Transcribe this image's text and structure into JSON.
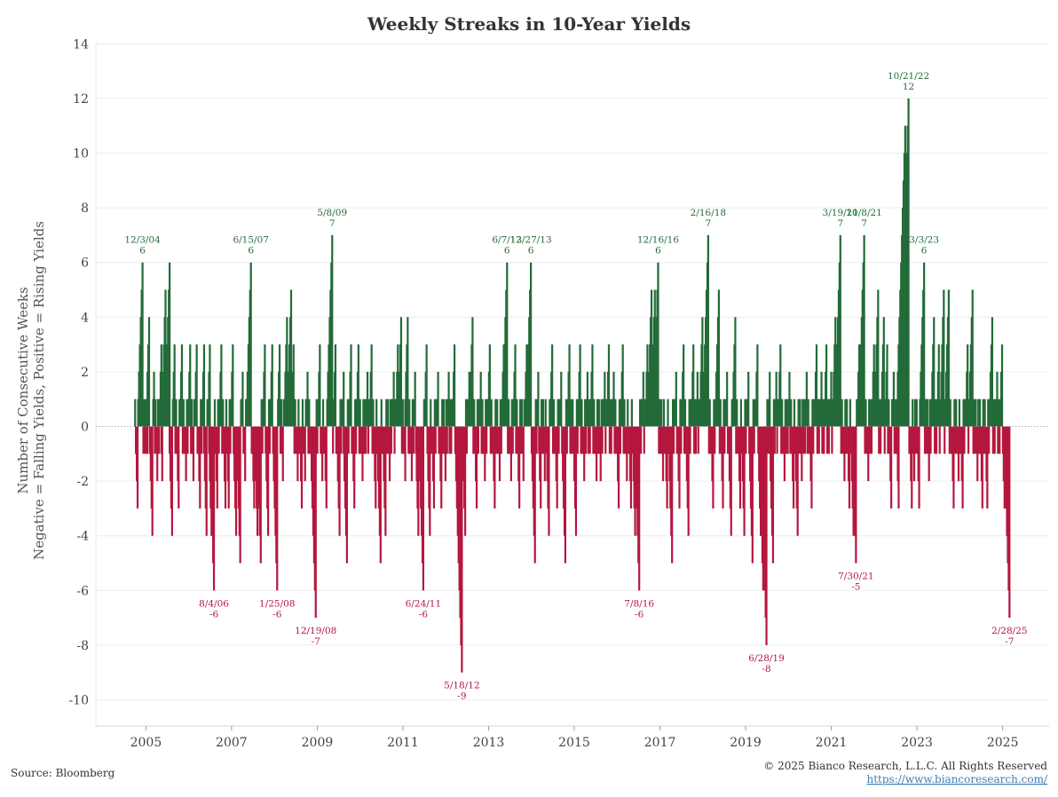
{
  "chart_data": {
    "type": "bar",
    "title": "Weekly Streaks in 10-Year Yields",
    "ylabel_line1": "Number of Consecutive Weeks",
    "ylabel_line2": "Negative = Falling Yields, Positive = Rising Yields",
    "xlabel": "",
    "ylim": [
      -11,
      14
    ],
    "y_ticks": [
      14,
      12,
      10,
      8,
      6,
      4,
      2,
      0,
      -2,
      -4,
      -6,
      -8,
      -10
    ],
    "x_ticks": [
      "2005",
      "2007",
      "2009",
      "2011",
      "2013",
      "2015",
      "2017",
      "2019",
      "2021",
      "2023",
      "2025"
    ],
    "xlim": [
      "2003-11-01",
      "2026-02-01"
    ],
    "grid": true,
    "colors": {
      "rising": "#236b38",
      "falling": "#b5173e"
    },
    "series": [
      {
        "values": [
          [
            "2004-10-01",
            1
          ],
          [
            "2004-10-08",
            -1
          ],
          [
            "2004-10-15",
            -2
          ],
          [
            "2004-10-22",
            -3
          ],
          [
            "2004-10-29",
            1
          ],
          [
            "2004-11-05",
            2
          ],
          [
            "2004-11-12",
            3
          ],
          [
            "2004-11-19",
            4
          ],
          [
            "2004-11-26",
            5
          ],
          [
            "2004-12-03",
            6
          ],
          [
            "2005-01-14",
            -1
          ],
          [
            "2005-01-28",
            4
          ],
          [
            "2005-02-25",
            -4
          ],
          [
            "2005-03-11",
            2
          ],
          [
            "2005-04-08",
            -2
          ],
          [
            "2005-05-13",
            3
          ],
          [
            "2005-05-20",
            -2
          ],
          [
            "2005-06-17",
            5
          ],
          [
            "2005-07-22",
            6
          ],
          [
            "2005-08-12",
            -4
          ],
          [
            "2005-09-02",
            3
          ],
          [
            "2005-10-07",
            -3
          ],
          [
            "2005-11-04",
            3
          ],
          [
            "2005-12-09",
            -2
          ],
          [
            "2006-01-13",
            3
          ],
          [
            "2006-02-10",
            -2
          ],
          [
            "2006-03-10",
            3
          ],
          [
            "2006-04-07",
            -3
          ],
          [
            "2006-05-12",
            3
          ],
          [
            "2006-06-02",
            -4
          ],
          [
            "2006-06-30",
            3
          ],
          [
            "2006-07-14",
            -4
          ],
          [
            "2006-08-04",
            -6
          ],
          [
            "2006-09-01",
            -3
          ],
          [
            "2006-10-06",
            3
          ],
          [
            "2006-11-10",
            -3
          ],
          [
            "2006-12-08",
            -3
          ],
          [
            "2007-01-12",
            3
          ],
          [
            "2007-02-09",
            -4
          ],
          [
            "2007-03-16",
            -5
          ],
          [
            "2007-04-06",
            2
          ],
          [
            "2007-04-27",
            -2
          ],
          [
            "2007-05-18",
            2
          ],
          [
            "2007-06-15",
            6
          ],
          [
            "2007-07-13",
            -3
          ],
          [
            "2007-08-10",
            -4
          ],
          [
            "2007-09-07",
            -5
          ],
          [
            "2007-10-12",
            3
          ],
          [
            "2007-11-09",
            -4
          ],
          [
            "2007-12-14",
            3
          ],
          [
            "2008-01-25",
            -6
          ],
          [
            "2008-02-15",
            3
          ],
          [
            "2008-03-14",
            -2
          ],
          [
            "2008-04-18",
            4
          ],
          [
            "2008-05-23",
            5
          ],
          [
            "2008-06-13",
            3
          ],
          [
            "2008-07-18",
            -2
          ],
          [
            "2008-08-22",
            -3
          ],
          [
            "2008-09-19",
            -2
          ],
          [
            "2008-10-10",
            2
          ],
          [
            "2008-11-21",
            -3
          ],
          [
            "2008-12-19",
            -7
          ],
          [
            "2009-01-23",
            3
          ],
          [
            "2009-02-13",
            -2
          ],
          [
            "2009-03-20",
            -3
          ],
          [
            "2009-04-10",
            3
          ],
          [
            "2009-05-08",
            7
          ],
          [
            "2009-06-05",
            3
          ],
          [
            "2009-07-10",
            -4
          ],
          [
            "2009-08-14",
            2
          ],
          [
            "2009-09-11",
            -5
          ],
          [
            "2009-10-16",
            3
          ],
          [
            "2009-11-13",
            -3
          ],
          [
            "2009-12-18",
            3
          ],
          [
            "2010-01-22",
            -2
          ],
          [
            "2010-03-05",
            2
          ],
          [
            "2010-04-09",
            3
          ],
          [
            "2010-05-14",
            -3
          ],
          [
            "2010-06-25",
            -5
          ],
          [
            "2010-08-06",
            -4
          ],
          [
            "2010-09-10",
            -2
          ],
          [
            "2010-10-15",
            2
          ],
          [
            "2010-11-19",
            3
          ],
          [
            "2010-12-17",
            4
          ],
          [
            "2011-01-21",
            -2
          ],
          [
            "2011-02-11",
            4
          ],
          [
            "2011-03-18",
            -2
          ],
          [
            "2011-04-15",
            2
          ],
          [
            "2011-05-13",
            -4
          ],
          [
            "2011-06-24",
            -6
          ],
          [
            "2011-07-22",
            3
          ],
          [
            "2011-08-19",
            -4
          ],
          [
            "2011-09-23",
            -3
          ],
          [
            "2011-10-28",
            2
          ],
          [
            "2011-11-25",
            -3
          ],
          [
            "2011-12-30",
            -2
          ],
          [
            "2012-01-27",
            2
          ],
          [
            "2012-03-16",
            3
          ],
          [
            "2012-04-13",
            -3
          ],
          [
            "2012-05-18",
            -9
          ],
          [
            "2012-06-15",
            -4
          ],
          [
            "2012-07-20",
            2
          ],
          [
            "2012-08-17",
            4
          ],
          [
            "2012-09-21",
            -3
          ],
          [
            "2012-10-26",
            2
          ],
          [
            "2012-11-30",
            -2
          ],
          [
            "2013-01-11",
            3
          ],
          [
            "2013-02-22",
            -3
          ],
          [
            "2013-04-05",
            -2
          ],
          [
            "2013-05-10",
            3
          ],
          [
            "2013-06-07",
            6
          ],
          [
            "2013-07-12",
            -2
          ],
          [
            "2013-08-16",
            3
          ],
          [
            "2013-09-20",
            -3
          ],
          [
            "2013-10-25",
            -2
          ],
          [
            "2013-11-22",
            3
          ],
          [
            "2013-12-27",
            6
          ],
          [
            "2014-01-31",
            -5
          ],
          [
            "2014-02-28",
            2
          ],
          [
            "2014-03-21",
            -3
          ],
          [
            "2014-04-25",
            -2
          ],
          [
            "2014-05-30",
            -4
          ],
          [
            "2014-06-27",
            3
          ],
          [
            "2014-08-08",
            -3
          ],
          [
            "2014-09-12",
            2
          ],
          [
            "2014-10-17",
            -5
          ],
          [
            "2014-11-21",
            3
          ],
          [
            "2015-01-16",
            -4
          ],
          [
            "2015-02-20",
            3
          ],
          [
            "2015-03-27",
            -2
          ],
          [
            "2015-04-24",
            2
          ],
          [
            "2015-06-05",
            3
          ],
          [
            "2015-07-10",
            -2
          ],
          [
            "2015-08-14",
            -2
          ],
          [
            "2015-09-18",
            2
          ],
          [
            "2015-10-23",
            3
          ],
          [
            "2015-12-04",
            2
          ],
          [
            "2016-01-15",
            -3
          ],
          [
            "2016-02-19",
            3
          ],
          [
            "2016-03-25",
            -2
          ],
          [
            "2016-04-29",
            -3
          ],
          [
            "2016-06-03",
            -4
          ],
          [
            "2016-07-08",
            -6
          ],
          [
            "2016-08-12",
            2
          ],
          [
            "2016-09-16",
            3
          ],
          [
            "2016-10-21",
            5
          ],
          [
            "2016-11-18",
            5
          ],
          [
            "2016-12-16",
            6
          ],
          [
            "2017-01-27",
            -2
          ],
          [
            "2017-03-03",
            -3
          ],
          [
            "2017-04-14",
            -5
          ],
          [
            "2017-05-19",
            2
          ],
          [
            "2017-06-16",
            -3
          ],
          [
            "2017-07-21",
            3
          ],
          [
            "2017-09-01",
            -4
          ],
          [
            "2017-10-13",
            3
          ],
          [
            "2017-11-17",
            2
          ],
          [
            "2017-12-29",
            4
          ],
          [
            "2018-02-16",
            7
          ],
          [
            "2018-03-30",
            -3
          ],
          [
            "2018-05-18",
            5
          ],
          [
            "2018-06-22",
            -3
          ],
          [
            "2018-07-27",
            2
          ],
          [
            "2018-08-31",
            -4
          ],
          [
            "2018-10-05",
            4
          ],
          [
            "2018-11-16",
            -3
          ],
          [
            "2018-12-21",
            -4
          ],
          [
            "2019-01-25",
            2
          ],
          [
            "2019-03-01",
            -5
          ],
          [
            "2019-04-12",
            3
          ],
          [
            "2019-05-10",
            -4
          ],
          [
            "2019-05-31",
            -6
          ],
          [
            "2019-06-28",
            -8
          ],
          [
            "2019-07-26",
            2
          ],
          [
            "2019-08-23",
            -5
          ],
          [
            "2019-09-20",
            2
          ],
          [
            "2019-10-25",
            3
          ],
          [
            "2019-11-29",
            -2
          ],
          [
            "2020-01-10",
            2
          ],
          [
            "2020-02-14",
            -3
          ],
          [
            "2020-03-20",
            -4
          ],
          [
            "2020-04-24",
            -2
          ],
          [
            "2020-06-05",
            2
          ],
          [
            "2020-07-17",
            -3
          ],
          [
            "2020-08-28",
            3
          ],
          [
            "2020-10-09",
            2
          ],
          [
            "2020-11-20",
            3
          ],
          [
            "2020-12-31",
            2
          ],
          [
            "2021-02-05",
            4
          ],
          [
            "2021-03-19",
            7
          ],
          [
            "2021-04-23",
            -2
          ],
          [
            "2021-06-04",
            -3
          ],
          [
            "2021-07-09",
            -4
          ],
          [
            "2021-07-30",
            -5
          ],
          [
            "2021-08-27",
            3
          ],
          [
            "2021-10-08",
            7
          ],
          [
            "2021-11-12",
            -2
          ],
          [
            "2021-12-31",
            3
          ],
          [
            "2022-02-04",
            5
          ],
          [
            "2022-03-25",
            4
          ],
          [
            "2022-04-22",
            3
          ],
          [
            "2022-05-27",
            -3
          ],
          [
            "2022-06-17",
            2
          ],
          [
            "2022-07-29",
            -3
          ],
          [
            "2022-08-26",
            3
          ],
          [
            "2022-09-23",
            11
          ],
          [
            "2022-10-21",
            12
          ],
          [
            "2022-11-18",
            -3
          ],
          [
            "2022-12-09",
            -2
          ],
          [
            "2023-01-20",
            -3
          ],
          [
            "2023-03-03",
            6
          ],
          [
            "2023-04-14",
            -2
          ],
          [
            "2023-05-26",
            4
          ],
          [
            "2023-07-07",
            3
          ],
          [
            "2023-08-18",
            5
          ],
          [
            "2023-09-29",
            5
          ],
          [
            "2023-11-10",
            -3
          ],
          [
            "2023-12-22",
            -2
          ],
          [
            "2024-01-26",
            -3
          ],
          [
            "2024-03-08",
            3
          ],
          [
            "2024-04-19",
            5
          ],
          [
            "2024-05-31",
            -2
          ],
          [
            "2024-07-12",
            -3
          ],
          [
            "2024-08-23",
            -3
          ],
          [
            "2024-10-04",
            4
          ],
          [
            "2024-11-15",
            2
          ],
          [
            "2024-12-27",
            3
          ],
          [
            "2025-01-17",
            -3
          ],
          [
            "2025-02-07",
            -4
          ],
          [
            "2025-02-28",
            -7
          ]
        ]
      }
    ],
    "annotations": [
      {
        "date": "2004-12-03",
        "value": 6,
        "label": "12/3/04",
        "value_label": "6"
      },
      {
        "date": "2007-06-15",
        "value": 6,
        "label": "6/15/07",
        "value_label": "6"
      },
      {
        "date": "2009-05-08",
        "value": 7,
        "label": "5/8/09",
        "value_label": "7"
      },
      {
        "date": "2013-06-07",
        "value": 6,
        "label": "6/7/13",
        "value_label": "6"
      },
      {
        "date": "2013-12-27",
        "value": 6,
        "label": "12/27/13",
        "value_label": "6"
      },
      {
        "date": "2016-12-16",
        "value": 6,
        "label": "12/16/16",
        "value_label": "6"
      },
      {
        "date": "2018-02-16",
        "value": 7,
        "label": "2/16/18",
        "value_label": "7"
      },
      {
        "date": "2021-03-19",
        "value": 7,
        "label": "3/19/21",
        "value_label": "7"
      },
      {
        "date": "2021-10-08",
        "value": 7,
        "label": "10/8/21",
        "value_label": "7"
      },
      {
        "date": "2022-10-21",
        "value": 12,
        "label": "10/21/22",
        "value_label": "12"
      },
      {
        "date": "2023-03-03",
        "value": 6,
        "label": "3/3/23",
        "value_label": "6"
      },
      {
        "date": "2006-08-04",
        "value": -6,
        "label": "8/4/06",
        "value_label": "-6"
      },
      {
        "date": "2008-01-25",
        "value": -6,
        "label": "1/25/08",
        "value_label": "-6"
      },
      {
        "date": "2008-12-19",
        "value": -7,
        "label": "12/19/08",
        "value_label": "-7"
      },
      {
        "date": "2011-06-24",
        "value": -6,
        "label": "6/24/11",
        "value_label": "-6"
      },
      {
        "date": "2012-05-18",
        "value": -9,
        "label": "5/18/12",
        "value_label": "-9"
      },
      {
        "date": "2016-07-08",
        "value": -6,
        "label": "7/8/16",
        "value_label": "-6"
      },
      {
        "date": "2019-06-28",
        "value": -8,
        "label": "6/28/19",
        "value_label": "-8"
      },
      {
        "date": "2021-07-30",
        "value": -5,
        "label": "7/30/21",
        "value_label": "-5"
      },
      {
        "date": "2025-02-28",
        "value": -7,
        "label": "2/28/25",
        "value_label": "-7"
      }
    ]
  },
  "footer": {
    "source": "Source: Bloomberg",
    "copyright": "© 2025 Bianco Research, L.L.C. All Rights Reserved",
    "url": "https://www.biancoresearch.com/"
  }
}
